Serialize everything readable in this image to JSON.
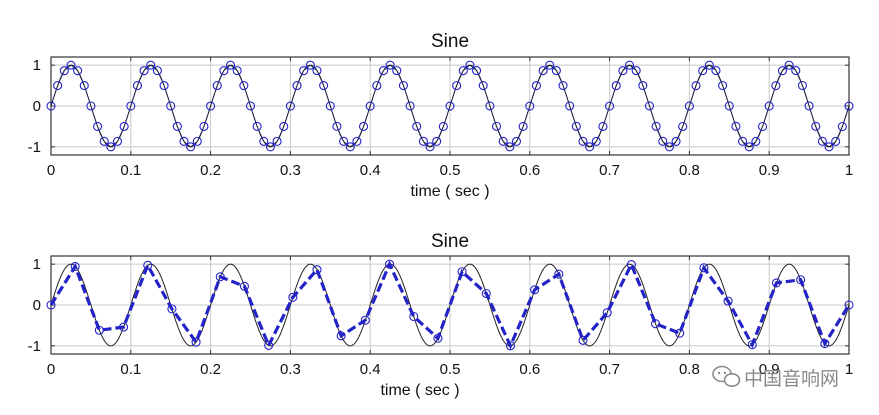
{
  "chart_data": [
    {
      "type": "line",
      "title": "Sine",
      "xlabel": "time ( sec )",
      "ylabel": "",
      "xlim": [
        0,
        1
      ],
      "ylim": [
        -1.2,
        1.2
      ],
      "x_ticks": [
        "0",
        "0.1",
        "0.2",
        "0.3",
        "0.4",
        "0.5",
        "0.6",
        "0.7",
        "0.8",
        "0.9",
        "1"
      ],
      "y_ticks": [
        "-1",
        "0",
        "1"
      ],
      "grid": true,
      "frequency_hz": 10,
      "sample_interval_sec": 0.008333,
      "series": [
        {
          "style": "continuous sine",
          "color": "#222222"
        },
        {
          "style": "samples (circle markers)",
          "color": "#2323c8"
        }
      ]
    },
    {
      "type": "line",
      "title": "Sine",
      "xlabel": "time ( sec )",
      "ylabel": "",
      "xlim": [
        0,
        1
      ],
      "ylim": [
        -1.2,
        1.2
      ],
      "x_ticks": [
        "0",
        "0.1",
        "0.2",
        "0.3",
        "0.4",
        "0.5",
        "0.6",
        "0.7",
        "0.8",
        "0.9",
        "1"
      ],
      "y_ticks": [
        "-1",
        "0",
        "1"
      ],
      "grid": true,
      "frequency_hz": 10,
      "sample_interval_sec": 0.030303,
      "series": [
        {
          "style": "continuous sine",
          "color": "#222222"
        },
        {
          "style": "samples joined by dashed line (circle markers)",
          "color": "#2323c8"
        }
      ]
    }
  ],
  "watermark": {
    "text": "中国音响网"
  }
}
